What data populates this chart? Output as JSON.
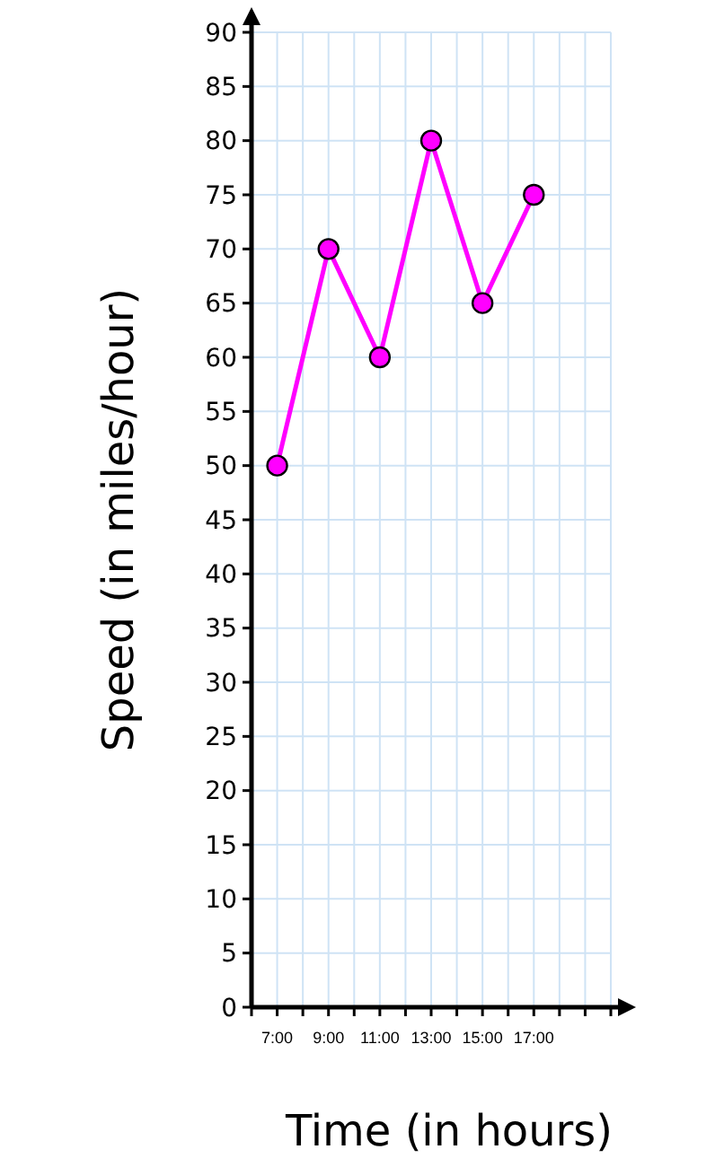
{
  "chart_data": {
    "type": "line",
    "xlabel": "Time (in hours)",
    "ylabel": "Speed (in miles/hour)",
    "x": [
      7,
      9,
      11,
      13,
      15,
      17
    ],
    "series": [
      {
        "color": "#ff00ff",
        "values": [
          50,
          70,
          60,
          80,
          65,
          75
        ]
      }
    ],
    "xlim": [
      6,
      20
    ],
    "xticks": [
      {
        "value": 6,
        "label": null
      },
      {
        "value": 7,
        "label": "7:00"
      },
      {
        "value": 8,
        "label": null
      },
      {
        "value": 9,
        "label": "9:00"
      },
      {
        "value": 10,
        "label": null
      },
      {
        "value": 11,
        "label": "11:00"
      },
      {
        "value": 12,
        "label": null
      },
      {
        "value": 13,
        "label": "13:00"
      },
      {
        "value": 14,
        "label": null
      },
      {
        "value": 15,
        "label": "15:00"
      },
      {
        "value": 16,
        "label": null
      },
      {
        "value": 17,
        "label": "17:00"
      },
      {
        "value": 18,
        "label": null
      },
      {
        "value": 19,
        "label": null
      },
      {
        "value": 20,
        "label": null
      }
    ],
    "ylim": [
      0,
      90
    ],
    "yticks": [
      0,
      5,
      10,
      15,
      20,
      25,
      30,
      35,
      40,
      45,
      50,
      55,
      60,
      65,
      70,
      75,
      80,
      85,
      90
    ],
    "grid": true,
    "marker": "circle",
    "line_style": "solid"
  }
}
